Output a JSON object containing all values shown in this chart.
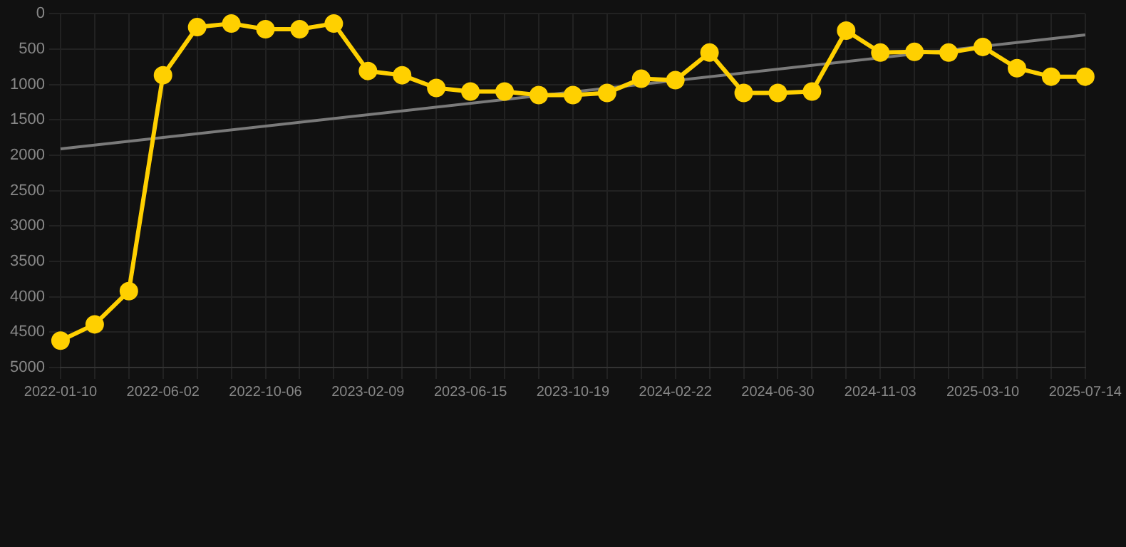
{
  "chart_data": {
    "type": "line",
    "categories": [
      "2022-01-10",
      null,
      null,
      "2022-06-02",
      null,
      null,
      "2022-10-06",
      null,
      null,
      "2023-02-09",
      null,
      null,
      "2023-06-15",
      null,
      null,
      "2023-10-19",
      null,
      null,
      "2024-02-22",
      null,
      null,
      "2024-06-30",
      null,
      null,
      "2024-11-03",
      null,
      null,
      "2025-03-10",
      null,
      null,
      "2025-07-14"
    ],
    "series": [
      {
        "color": "#ffd000",
        "marker": "circle",
        "values": [
          4620,
          4390,
          3920,
          870,
          190,
          140,
          220,
          220,
          140,
          810,
          870,
          1050,
          1100,
          1100,
          1150,
          1150,
          1120,
          920,
          940,
          550,
          1120,
          1120,
          1100,
          240,
          550,
          540,
          550,
          470,
          770,
          890,
          890
        ]
      },
      {
        "color": "#7a7a7a",
        "marker": "none",
        "values": [
          1910,
          null,
          null,
          null,
          null,
          null,
          null,
          null,
          null,
          null,
          null,
          null,
          null,
          null,
          null,
          null,
          null,
          null,
          null,
          null,
          null,
          null,
          null,
          null,
          null,
          null,
          null,
          null,
          null,
          null,
          300
        ]
      }
    ],
    "ylim": [
      5000,
      0
    ],
    "yticks": [
      0,
      500,
      1000,
      1500,
      2000,
      2500,
      3000,
      3500,
      4000,
      4500,
      5000
    ],
    "grid": true,
    "legend": false
  }
}
